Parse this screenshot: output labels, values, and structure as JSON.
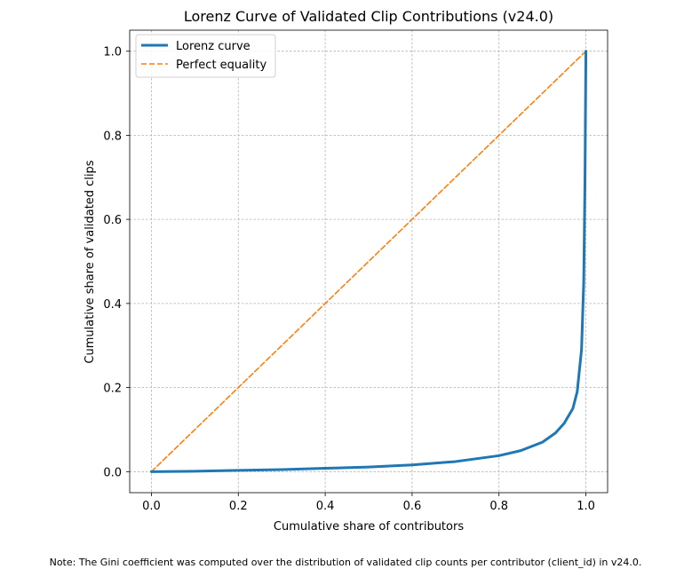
{
  "chart_data": {
    "type": "line",
    "title": "Lorenz Curve of Validated Clip Contributions (v24.0)",
    "xlabel": "Cumulative share of contributors",
    "ylabel": "Cumulative share of validated clips",
    "xlim": [
      -0.05,
      1.05
    ],
    "ylim": [
      -0.05,
      1.05
    ],
    "xticks": [
      0.0,
      0.2,
      0.4,
      0.6,
      0.8,
      1.0
    ],
    "yticks": [
      0.0,
      0.2,
      0.4,
      0.6,
      0.8,
      1.0
    ],
    "xtick_labels": [
      "0.0",
      "0.2",
      "0.4",
      "0.6",
      "0.8",
      "1.0"
    ],
    "ytick_labels": [
      "0.0",
      "0.2",
      "0.4",
      "0.6",
      "0.8",
      "1.0"
    ],
    "grid": true,
    "legend_position": "top-left",
    "series": [
      {
        "name": "Lorenz curve",
        "color": "#1f77b4",
        "style": "solid",
        "x": [
          0.0,
          0.1,
          0.2,
          0.3,
          0.4,
          0.5,
          0.6,
          0.7,
          0.8,
          0.85,
          0.9,
          0.93,
          0.95,
          0.97,
          0.98,
          0.99,
          0.995,
          0.998,
          1.0
        ],
        "y": [
          0.0,
          0.001,
          0.003,
          0.005,
          0.008,
          0.011,
          0.016,
          0.024,
          0.038,
          0.05,
          0.07,
          0.092,
          0.115,
          0.15,
          0.19,
          0.29,
          0.45,
          0.7,
          1.0
        ]
      },
      {
        "name": "Perfect equality",
        "color": "#ff7f0e",
        "style": "dashed",
        "x": [
          0.0,
          1.0
        ],
        "y": [
          0.0,
          1.0
        ]
      }
    ]
  },
  "note": "Note: The Gini coefficient was computed over the distribution of validated clip counts per contributor (client_id) in v24.0."
}
